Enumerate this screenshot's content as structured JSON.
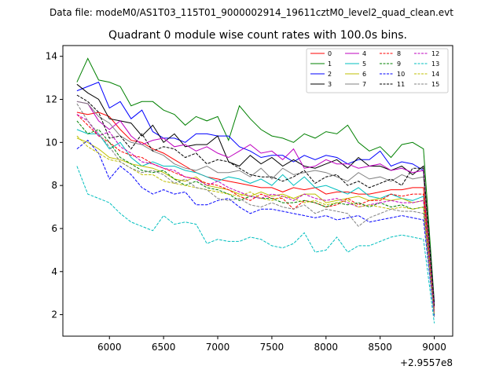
{
  "chart_data": {
    "type": "line",
    "suptitle": "Data file: modeM0/AS1T03_115T01_9000002914_19611cztM0_level2_quad_clean.evt",
    "title": "Quadrant 0 module wise count rates with 100.0s bins.",
    "xlabel": "",
    "ylabel": "",
    "x_offset_label": "+2.9557e8",
    "xlim": [
      5570,
      9170
    ],
    "ylim": [
      1.0,
      14.5
    ],
    "xticks": [
      6000,
      6500,
      7000,
      7500,
      8000,
      8500,
      9000
    ],
    "yticks": [
      2,
      4,
      6,
      8,
      10,
      12,
      14
    ],
    "x": [
      5700,
      5800,
      5900,
      6000,
      6100,
      6200,
      6300,
      6400,
      6500,
      6600,
      6700,
      6800,
      6900,
      7000,
      7100,
      7200,
      7300,
      7400,
      7500,
      7600,
      7700,
      7800,
      7900,
      8000,
      8100,
      8200,
      8300,
      8400,
      8500,
      8600,
      8700,
      8800,
      8900,
      9000
    ],
    "legend_position": "top-right",
    "series": [
      {
        "name": "0",
        "color": "#ff0000",
        "dash": "solid",
        "values": [
          11.4,
          11.3,
          11.4,
          11.2,
          10.6,
          10.1,
          10.0,
          9.7,
          9.5,
          9.2,
          8.9,
          8.6,
          8.4,
          8.3,
          8.2,
          8.1,
          8.0,
          7.9,
          7.9,
          7.7,
          7.9,
          7.8,
          7.9,
          7.6,
          7.7,
          7.7,
          7.6,
          7.6,
          7.7,
          7.8,
          7.8,
          7.9,
          7.9,
          2.3
        ]
      },
      {
        "name": "1",
        "color": "#008000",
        "dash": "solid",
        "values": [
          12.8,
          13.9,
          12.9,
          12.8,
          12.6,
          11.7,
          11.9,
          11.9,
          11.5,
          11.3,
          10.8,
          11.2,
          11.0,
          11.2,
          10.1,
          11.7,
          11.1,
          10.6,
          10.3,
          10.2,
          10.0,
          10.4,
          10.2,
          10.5,
          10.4,
          10.8,
          10.0,
          9.6,
          9.8,
          9.3,
          9.9,
          10.0,
          9.7,
          2.6
        ]
      },
      {
        "name": "2",
        "color": "#0000ff",
        "dash": "solid",
        "values": [
          12.4,
          12.6,
          12.8,
          11.6,
          11.9,
          11.1,
          11.5,
          10.5,
          10.2,
          10.2,
          10.0,
          10.4,
          10.4,
          10.3,
          10.3,
          9.8,
          9.6,
          9.3,
          9.4,
          9.4,
          9.1,
          9.4,
          9.2,
          9.4,
          9.3,
          9.0,
          9.2,
          9.2,
          9.6,
          8.9,
          9.1,
          9.0,
          8.7,
          2.5
        ]
      },
      {
        "name": "3",
        "color": "#000000",
        "dash": "solid",
        "values": [
          12.7,
          12.3,
          12.0,
          11.1,
          11.0,
          10.9,
          10.3,
          10.8,
          10.0,
          10.4,
          9.8,
          9.9,
          9.9,
          10.3,
          9.1,
          8.9,
          9.4,
          9.0,
          9.3,
          8.9,
          9.2,
          8.9,
          8.8,
          9.0,
          9.2,
          8.8,
          9.3,
          8.9,
          8.9,
          8.7,
          8.9,
          8.5,
          8.9,
          2.4
        ]
      },
      {
        "name": "4",
        "color": "#bf00bf",
        "dash": "solid",
        "values": [
          11.9,
          11.8,
          11.0,
          10.6,
          11.0,
          10.3,
          9.9,
          10.1,
          10.2,
          9.8,
          9.9,
          9.6,
          9.8,
          9.5,
          9.3,
          9.6,
          9.9,
          9.5,
          9.6,
          9.2,
          9.7,
          8.8,
          8.9,
          9.2,
          9.0,
          9.0,
          8.8,
          8.9,
          9.0,
          8.7,
          8.8,
          8.6,
          8.7,
          2.4
        ]
      },
      {
        "name": "5",
        "color": "#00bfbf",
        "dash": "solid",
        "values": [
          10.6,
          10.4,
          10.4,
          9.7,
          10.0,
          9.3,
          8.9,
          9.1,
          8.9,
          8.9,
          8.7,
          8.6,
          8.4,
          8.2,
          8.4,
          8.3,
          8.1,
          8.3,
          8.0,
          8.5,
          8.0,
          8.4,
          7.9,
          8.0,
          7.8,
          7.6,
          7.9,
          7.5,
          7.4,
          7.6,
          7.4,
          7.3,
          7.5,
          2.2
        ]
      },
      {
        "name": "6",
        "color": "#bfbf00",
        "dash": "solid",
        "values": [
          10.2,
          10.0,
          9.7,
          9.3,
          9.2,
          9.0,
          8.9,
          8.8,
          8.6,
          8.3,
          8.2,
          8.4,
          8.0,
          7.9,
          7.8,
          7.6,
          7.5,
          7.7,
          7.5,
          7.6,
          7.4,
          7.6,
          7.6,
          7.2,
          7.3,
          7.4,
          7.5,
          7.3,
          7.4,
          7.3,
          7.4,
          7.2,
          7.3,
          2.1
        ]
      },
      {
        "name": "7",
        "color": "#808080",
        "dash": "solid",
        "values": [
          11.9,
          11.8,
          11.2,
          10.9,
          10.3,
          10.0,
          9.9,
          9.6,
          9.4,
          9.0,
          8.8,
          8.7,
          8.9,
          8.6,
          8.6,
          8.7,
          8.4,
          8.8,
          8.3,
          8.8,
          8.5,
          8.6,
          8.7,
          8.6,
          8.4,
          8.2,
          8.6,
          8.3,
          8.4,
          8.2,
          8.5,
          8.3,
          8.4,
          2.3
        ]
      },
      {
        "name": "8",
        "color": "#ff0000",
        "dash": "dashed",
        "values": [
          11.3,
          10.8,
          10.3,
          10.0,
          9.6,
          9.4,
          9.3,
          9.0,
          8.8,
          8.6,
          8.4,
          8.3,
          8.1,
          8.0,
          7.8,
          7.5,
          7.3,
          7.6,
          7.4,
          7.4,
          6.9,
          7.3,
          7.2,
          7.0,
          7.1,
          7.4,
          7.1,
          7.3,
          7.3,
          7.6,
          7.5,
          7.6,
          7.6,
          2.2
        ]
      },
      {
        "name": "9",
        "color": "#008000",
        "dash": "dashed",
        "values": [
          11.0,
          10.4,
          10.6,
          10.0,
          9.3,
          9.0,
          8.7,
          8.6,
          8.7,
          8.3,
          8.0,
          8.2,
          7.9,
          7.8,
          7.6,
          7.3,
          7.5,
          7.4,
          7.4,
          7.2,
          7.2,
          7.3,
          7.2,
          7.0,
          7.2,
          7.1,
          7.2,
          7.0,
          7.2,
          7.0,
          7.1,
          6.9,
          7.0,
          2.0
        ]
      },
      {
        "name": "10",
        "color": "#0000ff",
        "dash": "dashed",
        "values": [
          9.7,
          10.1,
          9.5,
          8.3,
          8.9,
          8.5,
          7.9,
          7.6,
          7.8,
          7.6,
          7.7,
          7.1,
          7.1,
          7.3,
          7.4,
          7.0,
          6.7,
          6.9,
          6.9,
          6.8,
          6.7,
          6.6,
          6.5,
          6.6,
          6.4,
          6.5,
          6.6,
          6.3,
          6.4,
          6.5,
          6.6,
          6.5,
          6.4,
          1.9
        ]
      },
      {
        "name": "11",
        "color": "#000000",
        "dash": "dashed",
        "values": [
          12.2,
          11.9,
          11.4,
          10.2,
          10.3,
          9.7,
          10.4,
          9.6,
          9.8,
          9.7,
          9.3,
          9.5,
          9.0,
          9.2,
          9.1,
          8.8,
          8.5,
          8.4,
          8.4,
          8.2,
          8.4,
          8.7,
          8.1,
          8.4,
          8.5,
          8.0,
          8.2,
          7.9,
          8.1,
          8.3,
          8.0,
          8.8,
          8.8,
          2.4
        ]
      },
      {
        "name": "12",
        "color": "#bf00bf",
        "dash": "dashed",
        "values": [
          11.3,
          11.0,
          10.3,
          10.5,
          9.8,
          9.5,
          9.1,
          9.0,
          8.8,
          8.7,
          8.4,
          8.3,
          8.0,
          8.2,
          7.9,
          7.7,
          7.5,
          7.4,
          7.6,
          7.5,
          7.3,
          7.6,
          7.4,
          7.3,
          7.4,
          7.2,
          7.0,
          7.1,
          7.2,
          7.3,
          7.2,
          7.2,
          7.3,
          2.1
        ]
      },
      {
        "name": "13",
        "color": "#00bfbf",
        "dash": "dashed",
        "values": [
          8.9,
          7.6,
          7.4,
          7.2,
          6.7,
          6.3,
          6.1,
          5.9,
          6.6,
          6.2,
          6.3,
          6.2,
          5.3,
          5.5,
          5.4,
          5.4,
          5.6,
          5.5,
          5.2,
          5.1,
          5.3,
          5.8,
          4.9,
          5.0,
          5.6,
          4.9,
          5.2,
          5.2,
          5.4,
          5.6,
          5.7,
          5.6,
          5.5,
          1.6
        ]
      },
      {
        "name": "14",
        "color": "#bfbf00",
        "dash": "dashed",
        "values": [
          10.3,
          9.8,
          9.5,
          9.2,
          9.1,
          8.8,
          8.5,
          8.5,
          8.2,
          8.1,
          8.0,
          7.9,
          7.8,
          7.7,
          7.6,
          7.5,
          7.7,
          7.4,
          7.3,
          7.5,
          7.4,
          7.2,
          7.3,
          7.1,
          7.2,
          7.3,
          7.0,
          7.1,
          7.0,
          6.9,
          7.0,
          6.9,
          7.0,
          2.0
        ]
      },
      {
        "name": "15",
        "color": "#808080",
        "dash": "dashed",
        "values": [
          11.8,
          11.0,
          10.4,
          9.8,
          9.1,
          8.8,
          8.6,
          8.7,
          8.5,
          8.1,
          8.3,
          7.9,
          7.8,
          7.4,
          7.3,
          7.4,
          7.1,
          7.0,
          7.2,
          7.0,
          6.9,
          7.1,
          6.7,
          6.9,
          6.8,
          6.7,
          6.1,
          6.5,
          6.7,
          6.9,
          6.8,
          6.8,
          6.7,
          1.9
        ]
      }
    ]
  }
}
